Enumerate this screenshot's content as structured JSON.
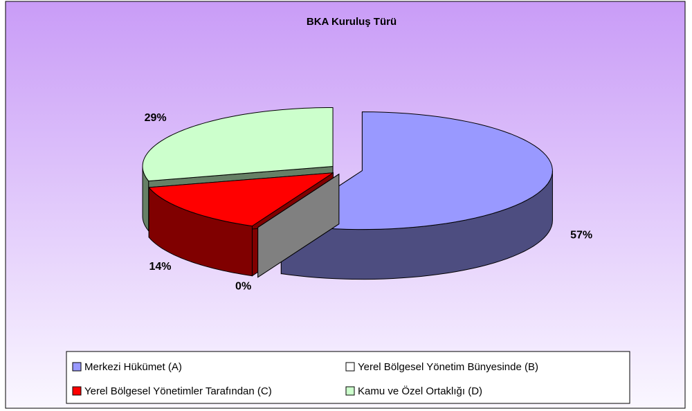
{
  "chart_data": {
    "type": "pie",
    "title": "BKA Kuruluş Türü",
    "categories": [
      "Merkezi Hükümet (A)",
      "Yerel Bölgesel Yönetim Bünyesinde (B)",
      "Yerel Bölgesel Yönetimler Tarafından (C)",
      "Kamu ve Özel Ortaklığı (D)"
    ],
    "values": [
      57,
      0,
      14,
      29
    ],
    "value_labels": [
      "57%",
      "0%",
      "14%",
      "29%"
    ],
    "colors": [
      "#9999ff",
      "#ffffff",
      "#ff0000",
      "#ccffcc"
    ],
    "legend": "bottom"
  }
}
